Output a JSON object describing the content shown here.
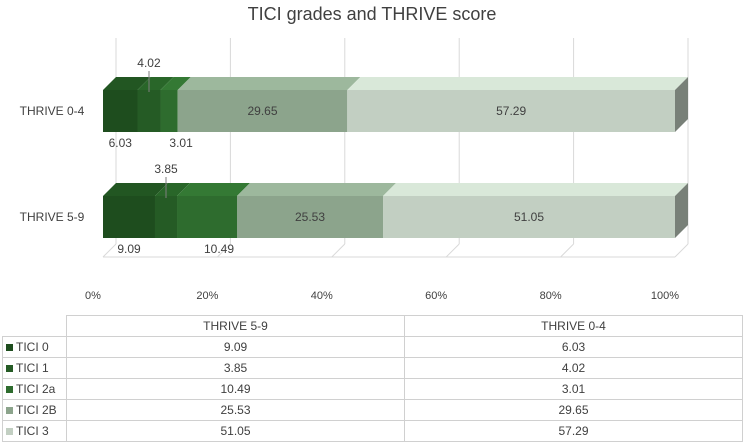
{
  "chart_data": {
    "type": "bar",
    "orientation": "horizontal",
    "stacked": "percent",
    "title": "TICI  grades and THRIVE score",
    "categories": [
      "THRIVE 0-4",
      "THRIVE 5-9"
    ],
    "series": [
      {
        "name": "TICI  0",
        "values": [
          6.03,
          9.09
        ],
        "color": "#1e4d1e"
      },
      {
        "name": "TICI 1",
        "values": [
          4.02,
          3.85
        ],
        "color": "#255b25"
      },
      {
        "name": "TICI 2a",
        "values": [
          3.01,
          10.49
        ],
        "color": "#2e6c2e"
      },
      {
        "name": "TICI 2B",
        "values": [
          29.65,
          25.53
        ],
        "color": "#8ca48c"
      },
      {
        "name": "TICI 3",
        "values": [
          57.29,
          51.05
        ],
        "color": "#c2cfc2"
      }
    ],
    "x_ticks": [
      "0%",
      "20%",
      "40%",
      "60%",
      "80%",
      "100%"
    ],
    "xlim": [
      0,
      100
    ],
    "legend_position": "table-below",
    "grid": true
  },
  "table": {
    "columns": [
      "THRIVE 5-9",
      "THRIVE 0-4"
    ],
    "rows": [
      {
        "label": "TICI  0",
        "values": [
          "9.09",
          "6.03"
        ]
      },
      {
        "label": "TICI 1",
        "values": [
          "3.85",
          "4.02"
        ]
      },
      {
        "label": "TICI 2a",
        "values": [
          "10.49",
          "3.01"
        ]
      },
      {
        "label": "TICI 2B",
        "values": [
          "25.53",
          "29.65"
        ]
      },
      {
        "label": "TICI 3",
        "values": [
          "51.05",
          "57.29"
        ]
      }
    ]
  }
}
